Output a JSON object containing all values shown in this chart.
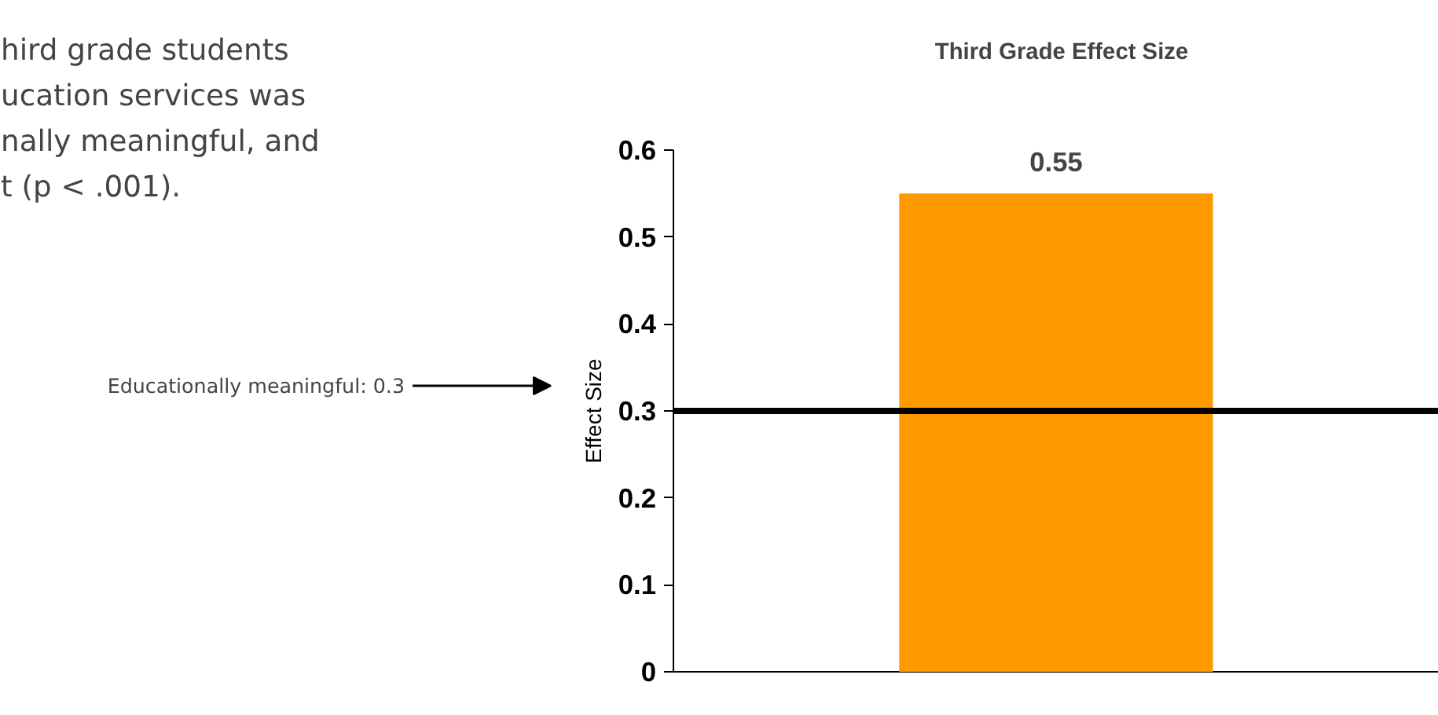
{
  "chart_data": {
    "type": "bar",
    "title": "Third Grade Effect Size",
    "ylabel": "Effect Size",
    "categories": [
      null
    ],
    "values": [
      0.55
    ],
    "color": "#ff9900",
    "ylim": [
      0,
      0.6
    ],
    "yticks": [
      0,
      0.1,
      0.2,
      0.3,
      0.4,
      0.5,
      0.6
    ],
    "data_labels": true,
    "grid": false,
    "ref_lines": [
      {
        "axis": "y",
        "value": 0.3,
        "color": "#000000"
      }
    ],
    "annotations": [
      "hird grade students",
      "ucation services was",
      "nally meaningful, and",
      "t (p < .001).",
      "Educationally meaningful: 0.3"
    ]
  }
}
